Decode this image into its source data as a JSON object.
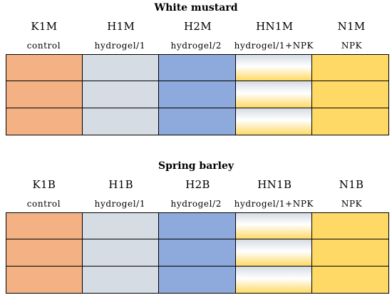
{
  "blocks": [
    {
      "title": "White mustard",
      "columns": [
        {
          "code": "K1M",
          "label": "control",
          "fill": "#F4B183",
          "gradient": false
        },
        {
          "code": "H1M",
          "label": "hydrogel/1",
          "fill": "#D6DCE4",
          "gradient": false
        },
        {
          "code": "H2M",
          "label": "hydrogel/2",
          "fill": "#8EA9DB",
          "gradient": false
        },
        {
          "code": "HN1M",
          "label": "hydrogel/1+NPK",
          "fill_top": "#D6DCE4",
          "fill_bottom": "#FFD966",
          "gradient": true
        },
        {
          "code": "N1M",
          "label": "NPK",
          "fill": "#FFD966",
          "gradient": false
        }
      ],
      "rows": 3
    },
    {
      "title": "Spring barley",
      "columns": [
        {
          "code": "K1B",
          "label": "control",
          "fill": "#F4B183",
          "gradient": false
        },
        {
          "code": "H1B",
          "label": "hydrogel/1",
          "fill": "#D6DCE4",
          "gradient": false
        },
        {
          "code": "H2B",
          "label": "hydrogel/2",
          "fill": "#8EA9DB",
          "gradient": false
        },
        {
          "code": "HN1B",
          "label": "hydrogel/1+NPK",
          "fill_top": "#D6DCE4",
          "fill_bottom": "#FFD966",
          "gradient": true
        },
        {
          "code": "N1B",
          "label": "NPK",
          "fill": "#FFD966",
          "gradient": false
        }
      ],
      "rows": 3
    }
  ]
}
